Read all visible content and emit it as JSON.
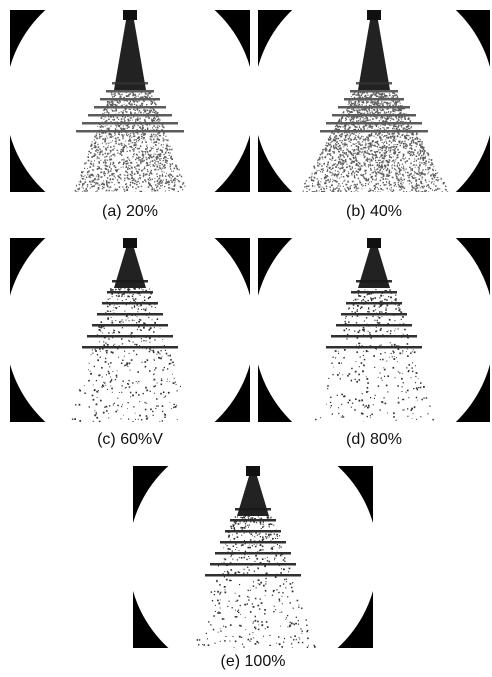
{
  "panels": [
    {
      "caption": "(a) 20%"
    },
    {
      "caption": "(b) 40%"
    },
    {
      "caption": "(c) 60%V"
    },
    {
      "caption": "(d) 80%"
    },
    {
      "caption": "(e) 100%"
    }
  ]
}
